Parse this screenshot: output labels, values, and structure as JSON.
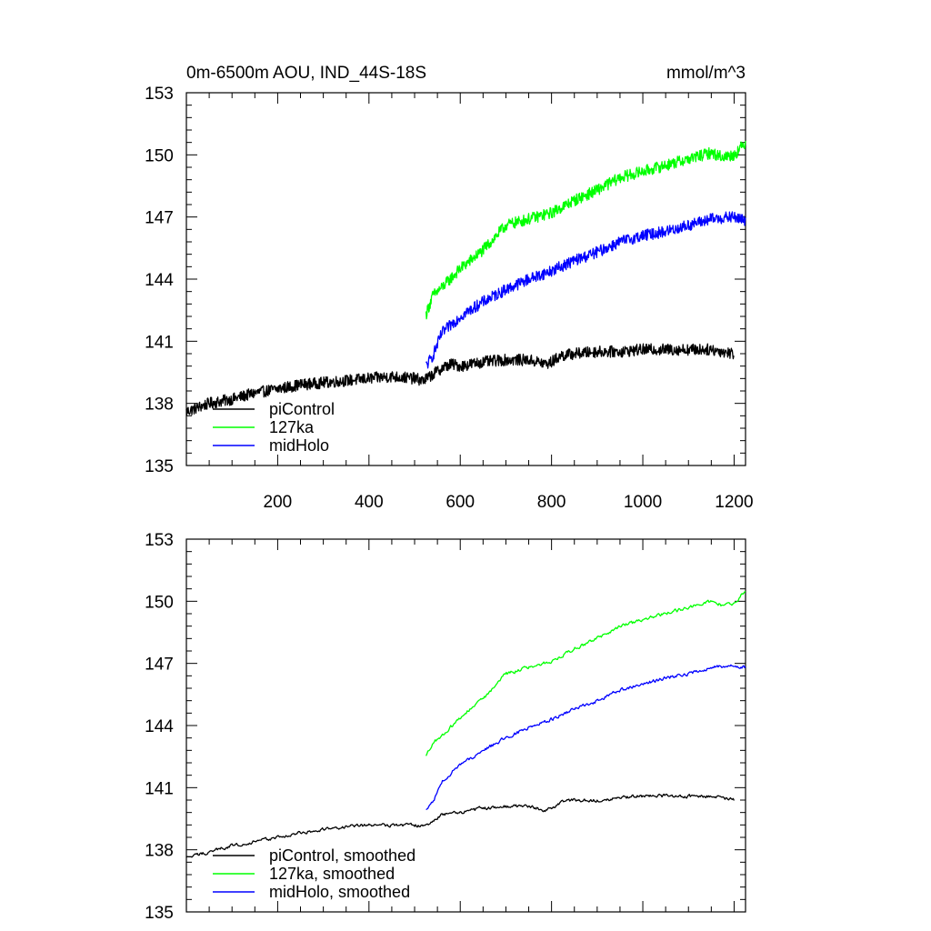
{
  "chart_data": [
    {
      "type": "line",
      "title": "0m-6500m AOU, IND_44S-18S",
      "units_label": "mmol/m^3",
      "xlabel": "",
      "ylabel": "",
      "xlim": [
        0,
        1225
      ],
      "ylim": [
        135,
        153
      ],
      "xticks": [
        200,
        400,
        600,
        800,
        1000,
        1200
      ],
      "xtick_labels": [
        "200",
        "400",
        "600",
        "800",
        "1000",
        "1200"
      ],
      "yticks": [
        135,
        138,
        141,
        144,
        147,
        150,
        153
      ],
      "ytick_labels": [
        "135",
        "138",
        "141",
        "144",
        "147",
        "150",
        "153"
      ],
      "legend_position": "bottom-left",
      "grid": false,
      "series": [
        {
          "name": "piControl",
          "color": "#000000",
          "x": [
            0,
            50,
            100,
            150,
            200,
            250,
            300,
            350,
            400,
            450,
            500,
            520,
            540,
            560,
            580,
            600,
            650,
            700,
            750,
            790,
            800,
            820,
            850,
            900,
            950,
            1000,
            1050,
            1100,
            1150,
            1200
          ],
          "y": [
            137.6,
            138.0,
            138.2,
            138.5,
            138.7,
            138.9,
            139.0,
            139.1,
            139.2,
            139.3,
            139.2,
            139.1,
            139.4,
            139.7,
            139.9,
            139.8,
            140.0,
            140.1,
            140.1,
            139.9,
            140.0,
            140.3,
            140.4,
            140.5,
            140.5,
            140.6,
            140.6,
            140.6,
            140.6,
            140.4
          ]
        },
        {
          "name": "127ka",
          "color": "#00ff00",
          "x": [
            525,
            540,
            560,
            600,
            650,
            700,
            750,
            800,
            850,
            900,
            950,
            1000,
            1050,
            1100,
            1150,
            1175,
            1200,
            1225
          ],
          "y": [
            142.3,
            143.2,
            143.6,
            144.5,
            145.4,
            146.6,
            146.9,
            147.2,
            147.8,
            148.3,
            148.9,
            149.2,
            149.5,
            149.8,
            150.1,
            149.9,
            150.0,
            150.6
          ]
        },
        {
          "name": "midHolo",
          "color": "#0000ff",
          "x": [
            525,
            540,
            560,
            600,
            650,
            700,
            750,
            800,
            850,
            900,
            950,
            1000,
            1050,
            1100,
            1150,
            1200,
            1225
          ],
          "y": [
            139.8,
            140.3,
            141.4,
            142.2,
            142.9,
            143.5,
            144.0,
            144.4,
            144.9,
            145.3,
            145.8,
            146.1,
            146.3,
            146.6,
            146.9,
            147.0,
            146.8
          ]
        }
      ],
      "legend": [
        "piControl",
        "127ka",
        "midHolo"
      ]
    },
    {
      "type": "line",
      "title": "",
      "xlabel": "",
      "ylabel": "",
      "xlim": [
        0,
        1225
      ],
      "ylim": [
        135,
        153
      ],
      "xticks": [
        200,
        400,
        600,
        800,
        1000,
        1200
      ],
      "yticks": [
        135,
        138,
        141,
        144,
        147,
        150,
        153
      ],
      "ytick_labels": [
        "135",
        "138",
        "141",
        "144",
        "147",
        "150",
        "153"
      ],
      "legend_position": "bottom-left",
      "grid": false,
      "series": [
        {
          "name": "piControl, smoothed",
          "color": "#000000",
          "x": [
            0,
            50,
            100,
            150,
            200,
            250,
            300,
            350,
            400,
            450,
            500,
            520,
            540,
            560,
            580,
            600,
            650,
            700,
            750,
            790,
            800,
            820,
            850,
            900,
            950,
            1000,
            1050,
            1100,
            1150,
            1200
          ],
          "y": [
            137.6,
            137.9,
            138.2,
            138.4,
            138.6,
            138.8,
            139.0,
            139.1,
            139.2,
            139.2,
            139.2,
            139.1,
            139.4,
            139.7,
            139.8,
            139.8,
            140.0,
            140.1,
            140.1,
            139.9,
            140.0,
            140.3,
            140.4,
            140.4,
            140.5,
            140.6,
            140.6,
            140.6,
            140.6,
            140.4
          ]
        },
        {
          "name": "127ka, smoothed",
          "color": "#00ff00",
          "x": [
            525,
            540,
            560,
            600,
            650,
            700,
            750,
            800,
            850,
            900,
            950,
            1000,
            1050,
            1100,
            1150,
            1175,
            1200,
            1225
          ],
          "y": [
            142.5,
            143.2,
            143.5,
            144.4,
            145.3,
            146.5,
            146.8,
            147.1,
            147.7,
            148.2,
            148.8,
            149.1,
            149.4,
            149.7,
            150.0,
            149.8,
            149.9,
            150.5
          ]
        },
        {
          "name": "midHolo, smoothed",
          "color": "#0000ff",
          "x": [
            525,
            540,
            560,
            600,
            650,
            700,
            750,
            800,
            850,
            900,
            950,
            1000,
            1050,
            1100,
            1150,
            1200,
            1225
          ],
          "y": [
            139.9,
            140.3,
            141.3,
            142.1,
            142.8,
            143.4,
            143.9,
            144.3,
            144.8,
            145.2,
            145.7,
            146.0,
            146.3,
            146.5,
            146.8,
            146.9,
            146.8
          ]
        }
      ],
      "legend": [
        "piControl, smoothed",
        "127ka, smoothed",
        "midHolo, smoothed"
      ]
    }
  ]
}
